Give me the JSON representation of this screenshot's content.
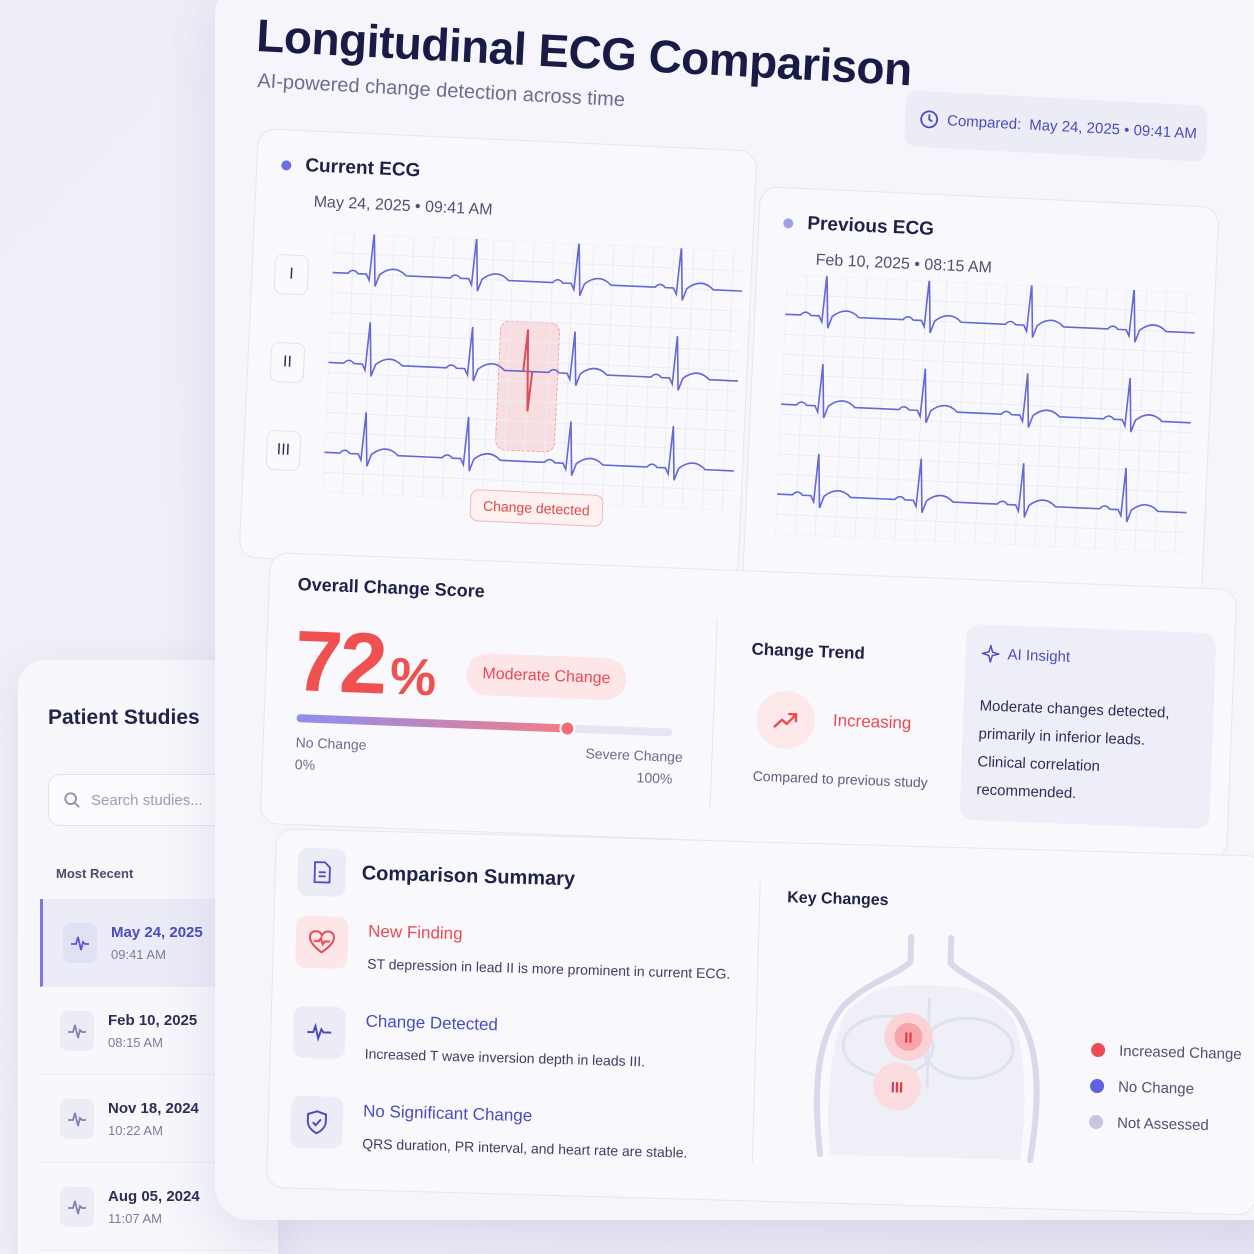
{
  "header": {
    "title": "Longitudinal ECG Comparison",
    "subtitle": "AI-powered change detection across time",
    "compared_label": "Compared:",
    "compared_value": "May 24, 2025 • 09:41 AM"
  },
  "sidebar": {
    "title": "Patient Studies",
    "search_placeholder": "Search studies...",
    "section_label": "Most Recent",
    "studies": [
      {
        "date": "May 24, 2025",
        "time": "09:41 AM",
        "active": true
      },
      {
        "date": "Feb 10, 2025",
        "time": "08:15 AM",
        "active": false
      },
      {
        "date": "Nov 18, 2024",
        "time": "10:22 AM",
        "active": false
      },
      {
        "date": "Aug 05, 2024",
        "time": "11:07 AM",
        "active": false
      }
    ]
  },
  "ecg_current": {
    "title": "Current ECG",
    "date": "May 24, 2025 • 09:41 AM",
    "leads": [
      "I",
      "II",
      "III"
    ],
    "change_tag": "Change detected"
  },
  "ecg_previous": {
    "title": "Previous ECG",
    "date": "Feb 10, 2025 • 08:15 AM"
  },
  "score": {
    "title": "Overall Change Score",
    "value": "72",
    "unit": "%",
    "fraction": 0.72,
    "badge": "Moderate Change",
    "min_label": "No Change",
    "min_value": "0%",
    "max_label": "Severe Change",
    "max_value": "100%"
  },
  "trend": {
    "title": "Change Trend",
    "status": "Increasing",
    "note": "Compared to previous study"
  },
  "insight": {
    "title": "AI Insight",
    "lines": [
      "Moderate changes detected,",
      "primarily in inferior leads.",
      "Clinical correlation recommended."
    ]
  },
  "summary": {
    "title": "Comparison Summary",
    "findings": [
      {
        "title": "New Finding",
        "desc": "ST depression in lead II is more prominent in current ECG.",
        "color": "#ea4b52",
        "icon": "heart-pulse-icon"
      },
      {
        "title": "Change Detected",
        "desc": "Increased T wave inversion depth in leads III.",
        "color": "#4a4cbf",
        "icon": "waveform-icon"
      },
      {
        "title": "No Significant Change",
        "desc": "QRS duration, PR interval, and heart rate are stable.",
        "color": "#4a4cbf",
        "icon": "shield-check-icon"
      }
    ],
    "key_changes_title": "Key Changes",
    "markers": [
      "II",
      "III"
    ],
    "legend": [
      {
        "label": "Increased Change",
        "color": "#ef4b55"
      },
      {
        "label": "No Change",
        "color": "#5f61e0"
      },
      {
        "label": "Not Assessed",
        "color": "#c6c7de"
      }
    ]
  }
}
